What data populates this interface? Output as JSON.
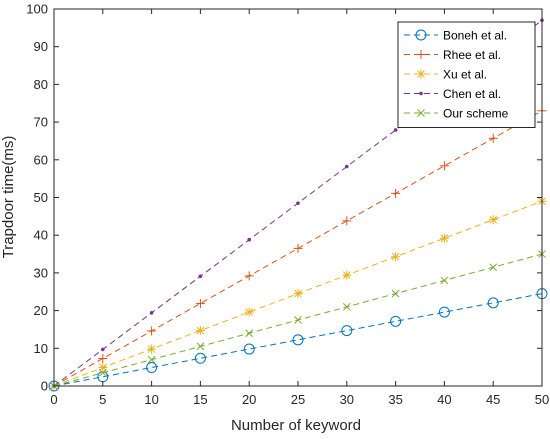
{
  "chart_data": {
    "type": "line",
    "title": "",
    "xlabel": "Number of keyword",
    "ylabel": "Trapdoor time(ms)",
    "xlim": [
      0,
      50
    ],
    "ylim": [
      0,
      100
    ],
    "xticks": [
      "0",
      "5",
      "10",
      "15",
      "20",
      "25",
      "30",
      "35",
      "40",
      "45",
      "50"
    ],
    "yticks": [
      "0",
      "10",
      "20",
      "30",
      "40",
      "50",
      "60",
      "70",
      "80",
      "90",
      "100"
    ],
    "grid": false,
    "legend_position": "top-right",
    "x": [
      0,
      5,
      10,
      15,
      20,
      25,
      30,
      35,
      40,
      45,
      50
    ],
    "series": [
      {
        "name": "Boneh et al.",
        "color": "#0072BD",
        "marker": "circle",
        "values": [
          0,
          2.45,
          4.9,
          7.35,
          9.8,
          12.25,
          14.7,
          17.15,
          19.6,
          22.05,
          24.5
        ]
      },
      {
        "name": "Rhee et al.",
        "color": "#D95319",
        "marker": "plus",
        "values": [
          0,
          7.3,
          14.6,
          21.9,
          29.2,
          36.5,
          43.8,
          51.1,
          58.4,
          65.7,
          73.0
        ]
      },
      {
        "name": "Xu et al.",
        "color": "#EDB120",
        "marker": "asterisk",
        "values": [
          0,
          4.9,
          9.8,
          14.7,
          19.6,
          24.5,
          29.4,
          34.3,
          39.2,
          44.1,
          49.0
        ]
      },
      {
        "name": "Chen et al.",
        "color": "#7E2F8E",
        "marker": "dot",
        "values": [
          0,
          9.7,
          19.4,
          29.1,
          38.8,
          48.5,
          58.2,
          67.9,
          77.6,
          87.3,
          97.0
        ]
      },
      {
        "name": "Our scheme",
        "color": "#77AC30",
        "marker": "cross",
        "values": [
          0,
          3.5,
          7.0,
          10.5,
          14.0,
          17.5,
          21.0,
          24.5,
          28.0,
          31.5,
          35.0
        ]
      }
    ]
  }
}
